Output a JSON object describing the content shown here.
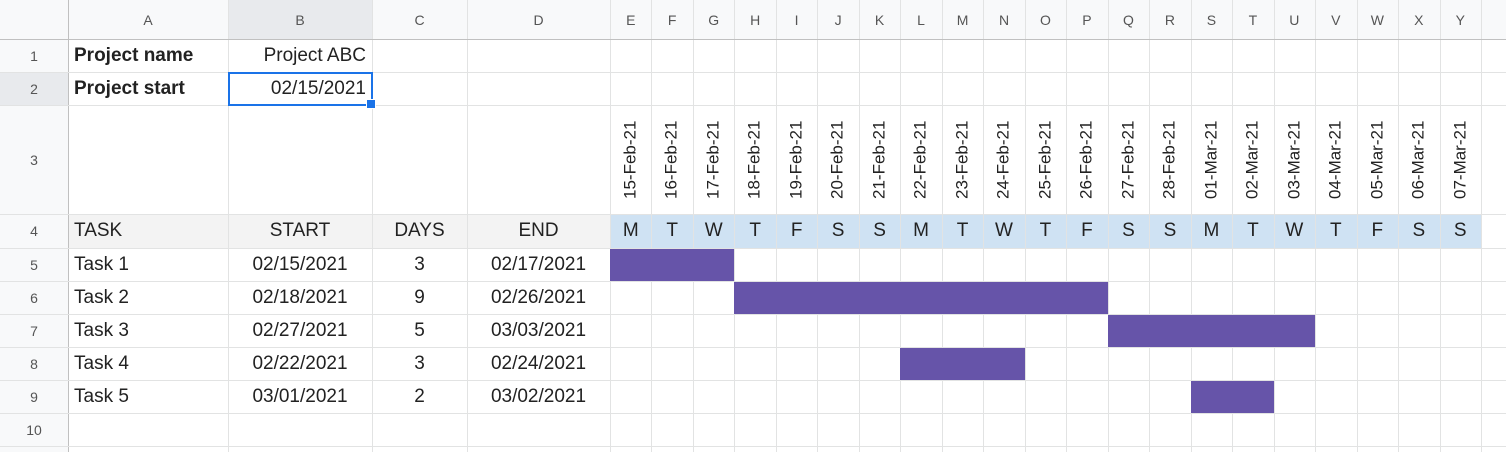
{
  "columns": [
    "A",
    "B",
    "C",
    "D",
    "E",
    "F",
    "G",
    "H",
    "I",
    "J",
    "K",
    "L",
    "M",
    "N",
    "O",
    "P",
    "Q",
    "R",
    "S",
    "T",
    "U",
    "V",
    "W",
    "X",
    "Y"
  ],
  "rows": [
    1,
    2,
    3,
    4,
    5,
    6,
    7,
    8,
    9,
    10
  ],
  "project": {
    "name_label": "Project name",
    "name": "Project ABC",
    "start_label": "Project start",
    "start": "02/15/2021"
  },
  "dates": [
    "15-Feb-21",
    "16-Feb-21",
    "17-Feb-21",
    "18-Feb-21",
    "19-Feb-21",
    "20-Feb-21",
    "21-Feb-21",
    "22-Feb-21",
    "23-Feb-21",
    "24-Feb-21",
    "25-Feb-21",
    "26-Feb-21",
    "27-Feb-21",
    "28-Feb-21",
    "01-Mar-21",
    "02-Mar-21",
    "03-Mar-21",
    "04-Mar-21",
    "05-Mar-21",
    "06-Mar-21",
    "07-Mar-21"
  ],
  "weekdays": [
    "M",
    "T",
    "W",
    "T",
    "F",
    "S",
    "S",
    "M",
    "T",
    "W",
    "T",
    "F",
    "S",
    "S",
    "M",
    "T",
    "W",
    "T",
    "F",
    "S",
    "S"
  ],
  "table": {
    "header": [
      "TASK",
      "START",
      "DAYS",
      "END"
    ],
    "rows": [
      [
        "Task 1",
        "02/15/2021",
        3,
        "02/17/2021"
      ],
      [
        "Task 2",
        "02/18/2021",
        9,
        "02/26/2021"
      ],
      [
        "Task 3",
        "02/27/2021",
        5,
        "03/03/2021"
      ],
      [
        "Task 4",
        "02/22/2021",
        3,
        "02/24/2021"
      ],
      [
        "Task 5",
        "03/01/2021",
        2,
        "03/02/2021"
      ]
    ]
  },
  "bar_color": "#6654a9"
}
